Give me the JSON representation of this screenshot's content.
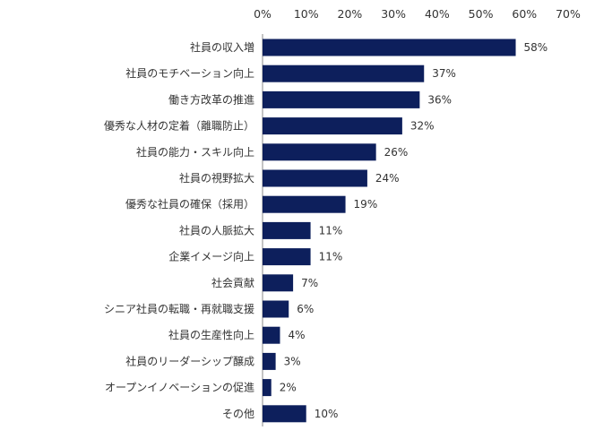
{
  "chart_data": {
    "type": "bar",
    "orientation": "horizontal",
    "title": "",
    "xlabel": "",
    "ylabel": "",
    "xlim": [
      0,
      70
    ],
    "ticks": [
      0,
      10,
      20,
      30,
      40,
      50,
      60,
      70
    ],
    "tick_suffix": "%",
    "grid": false,
    "legend": "none",
    "bar_color": "#0d1f5c",
    "categories": [
      "社員の収入増",
      "社員のモチベーション向上",
      "働き方改革の推進",
      "優秀な人材の定着（離職防止）",
      "社員の能力・スキル向上",
      "社員の視野拡大",
      "優秀な社員の確保（採用）",
      "社員の人脈拡大",
      "企業イメージ向上",
      "社会貢献",
      "シニア社員の転職・再就職支援",
      "社員の生産性向上",
      "社員のリーダーシップ醸成",
      "オープンイノベーションの促進",
      "その他"
    ],
    "values": [
      58,
      37,
      36,
      32,
      26,
      24,
      19,
      11,
      11,
      7,
      6,
      4,
      3,
      2,
      10
    ],
    "value_labels": [
      "58%",
      "37%",
      "36%",
      "32%",
      "26%",
      "24%",
      "19%",
      "11%",
      "11%",
      "7%",
      "6%",
      "4%",
      "3%",
      "2%",
      "10%"
    ]
  }
}
